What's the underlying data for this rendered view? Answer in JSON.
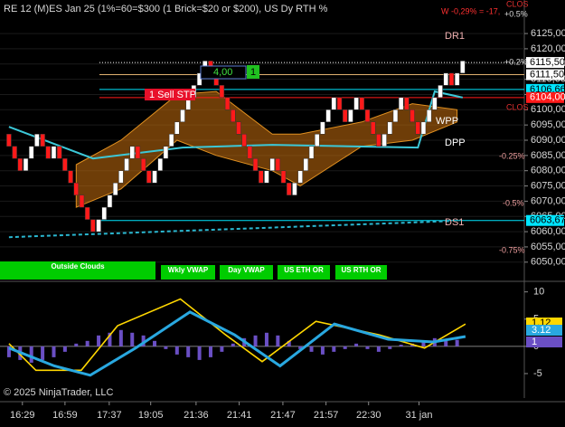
{
  "header": {
    "title": "RE 12 (M)ES Jan 25 (1%=60=$300  (1 Brick=$20 or $200), US Dy RTH %",
    "weekly_change": "W -0,29% = -17,"
  },
  "chart_data": [
    {
      "type": "renko",
      "brick_size": 4,
      "up_color": "#ffffff",
      "down_color": "#ff1a1a",
      "values": [
        6088,
        6084,
        6080,
        6084,
        6088,
        6092,
        6088,
        6084,
        6088,
        6084,
        6080,
        6076,
        6072,
        6068,
        6064,
        6060,
        6064,
        6068,
        6072,
        6076,
        6080,
        6084,
        6088,
        6084,
        6080,
        6076,
        6080,
        6084,
        6088,
        6092,
        6096,
        6100,
        6104,
        6108,
        6112,
        6116,
        6112,
        6108,
        6104,
        6100,
        6096,
        6092,
        6088,
        6084,
        6080,
        6076,
        6080,
        6084,
        6080,
        6076,
        6072,
        6076,
        6080,
        6084,
        6088,
        6092,
        6096,
        6100,
        6104,
        6100,
        6096,
        6100,
        6104,
        6100,
        6096,
        6092,
        6088,
        6092,
        6096,
        6100,
        6104,
        6100,
        6096,
        6092,
        6096,
        6100,
        6104,
        6108,
        6112,
        6108,
        6112,
        6116
      ],
      "xlim": [
        -1.6,
        92
      ],
      "xticks": [
        {
          "value": 2.4,
          "label": "16:29"
        },
        {
          "value": 10,
          "label": "16:59"
        },
        {
          "value": 17.9,
          "label": "17:37"
        },
        {
          "value": 25.3,
          "label": "19:05"
        },
        {
          "value": 33.4,
          "label": "21:36"
        },
        {
          "value": 41.1,
          "label": "21:41"
        },
        {
          "value": 48.9,
          "label": "21:47"
        },
        {
          "value": 56.6,
          "label": "21:57"
        },
        {
          "value": 64.2,
          "label": "22:30"
        },
        {
          "value": 73.2,
          "label": "31 jan"
        }
      ],
      "ylim": [
        6044,
        6136
      ],
      "yticks": [
        {
          "value": 6050,
          "label": "6050,00"
        },
        {
          "value": 6055,
          "label": "6055,00"
        },
        {
          "value": 6060,
          "label": "6060,00"
        },
        {
          "value": 6065,
          "label": "6065,00"
        },
        {
          "value": 6070,
          "label": "6070,00"
        },
        {
          "value": 6075,
          "label": "6075,00"
        },
        {
          "value": 6080,
          "label": "6080,00"
        },
        {
          "value": 6085,
          "label": "6085,00"
        },
        {
          "value": 6090,
          "label": "6090,00"
        },
        {
          "value": 6095,
          "label": "6095,00"
        },
        {
          "value": 6100,
          "label": "6100,00"
        },
        {
          "value": 6105,
          "label": "6105,00"
        },
        {
          "value": 6110,
          "label": "6110,00"
        },
        {
          "value": 6115,
          "label": "6115,00"
        },
        {
          "value": 6120,
          "label": "6120,00"
        },
        {
          "value": 6125,
          "label": "6125,00"
        }
      ],
      "bands": [
        {
          "color": "#c8700f",
          "x": [
            12,
            20,
            30,
            37,
            47,
            52,
            63,
            72,
            80
          ],
          "upper": [
            6082,
            6090,
            6105,
            6106,
            6092,
            6092,
            6096,
            6102,
            6100
          ],
          "lower": [
            6068,
            6074,
            6090,
            6085,
            6080,
            6075,
            6088,
            6090,
            6096
          ]
        }
      ],
      "lines": [
        {
          "color": "#3cc8d8",
          "x": [
            0,
            15,
            31,
            47,
            73,
            76,
            81
          ],
          "values": [
            6094.4,
            6084,
            6087.6,
            6088.5,
            6087.6,
            6106,
            6104
          ]
        },
        {
          "color": "#2ab7d0",
          "dash": true,
          "x": [
            0,
            79
          ],
          "values": [
            6058.2,
            6063.5
          ]
        }
      ],
      "levels": [
        {
          "value": 6115.5,
          "label": "6115,50",
          "color": "#ffffff"
        },
        {
          "value": 6111.5,
          "label": "6111,50",
          "color": "#e0b070"
        },
        {
          "value": 6106.66,
          "label": "6106,66",
          "color": "#00e5ff"
        },
        {
          "value": 6104,
          "label": "6104,00",
          "color": "#ff1a1a"
        },
        {
          "value": 6063.67,
          "label": "6063,67",
          "color": "#00e5ff"
        }
      ],
      "annotations": [
        "DR1",
        "WPP",
        "DPP",
        "DS1"
      ],
      "percent_labels": [
        "+0.5%",
        "+0.2%",
        "-0.25%",
        "-0.5%",
        "-0.75%"
      ],
      "close_labels": [
        "CLOS",
        "CLOS"
      ],
      "order": {
        "label": "1 Sell STP",
        "offset": "4,00",
        "quantity": "1"
      },
      "buttons": [
        "Outside Clouds",
        "Wkly VWAP",
        "Day VWAP",
        "US ETH OR",
        "US RTH OR"
      ]
    },
    {
      "type": "oscillator",
      "xlim": [
        -1.6,
        92
      ],
      "ylim": [
        -7,
        11.6
      ],
      "yticks": [
        10,
        5,
        0,
        -5
      ],
      "histogram": {
        "color": "#6a4fc4",
        "x": [
          0,
          2,
          4,
          6,
          8,
          10,
          12,
          14,
          16,
          18,
          20,
          22,
          24,
          26,
          28,
          30,
          32,
          34,
          36,
          38,
          40,
          42,
          44,
          46,
          48,
          50,
          52,
          54,
          56,
          58,
          60,
          62,
          64,
          66,
          68,
          70,
          72,
          74,
          76,
          78,
          80
        ],
        "values": [
          -2,
          -2.5,
          -3,
          -2.5,
          -2,
          -1,
          0.5,
          1,
          2,
          2.5,
          3,
          2.5,
          2,
          1,
          -0.5,
          -1.5,
          -2,
          -2.5,
          -2,
          -1,
          0.5,
          1.5,
          2,
          2.5,
          2,
          1,
          -0.5,
          -1,
          -1.5,
          -1,
          -0.5,
          0.5,
          -0.5,
          -1,
          -0.5,
          0.3,
          0.5,
          1,
          1.5,
          1,
          1.2
        ]
      },
      "lines": [
        {
          "color": "#ffd700",
          "x": [
            0,
            4.8,
            12.9,
            19.4,
            30.6,
            38.7,
            45.2,
            54.8,
            66.1,
            74.2,
            81.5
          ],
          "values": [
            0.5,
            -4.4,
            -4.4,
            3.8,
            8.7,
            2.1,
            -2.8,
            4.6,
            2.1,
            -0.3,
            4.1
          ]
        },
        {
          "color": "#29a8e0",
          "x": [
            0,
            8.1,
            14.5,
            22.6,
            32.3,
            40.3,
            48.4,
            58.1,
            67.7,
            75.8,
            81.5
          ],
          "values": [
            -0.3,
            -3.6,
            -5.3,
            -0.3,
            6.3,
            2.1,
            -3.6,
            4.1,
            1.3,
            0.8,
            1.8
          ]
        }
      ],
      "last_values": [
        1.12,
        3.12,
        1
      ]
    }
  ],
  "footer": "© 2025 NinjaTrader, LLC"
}
